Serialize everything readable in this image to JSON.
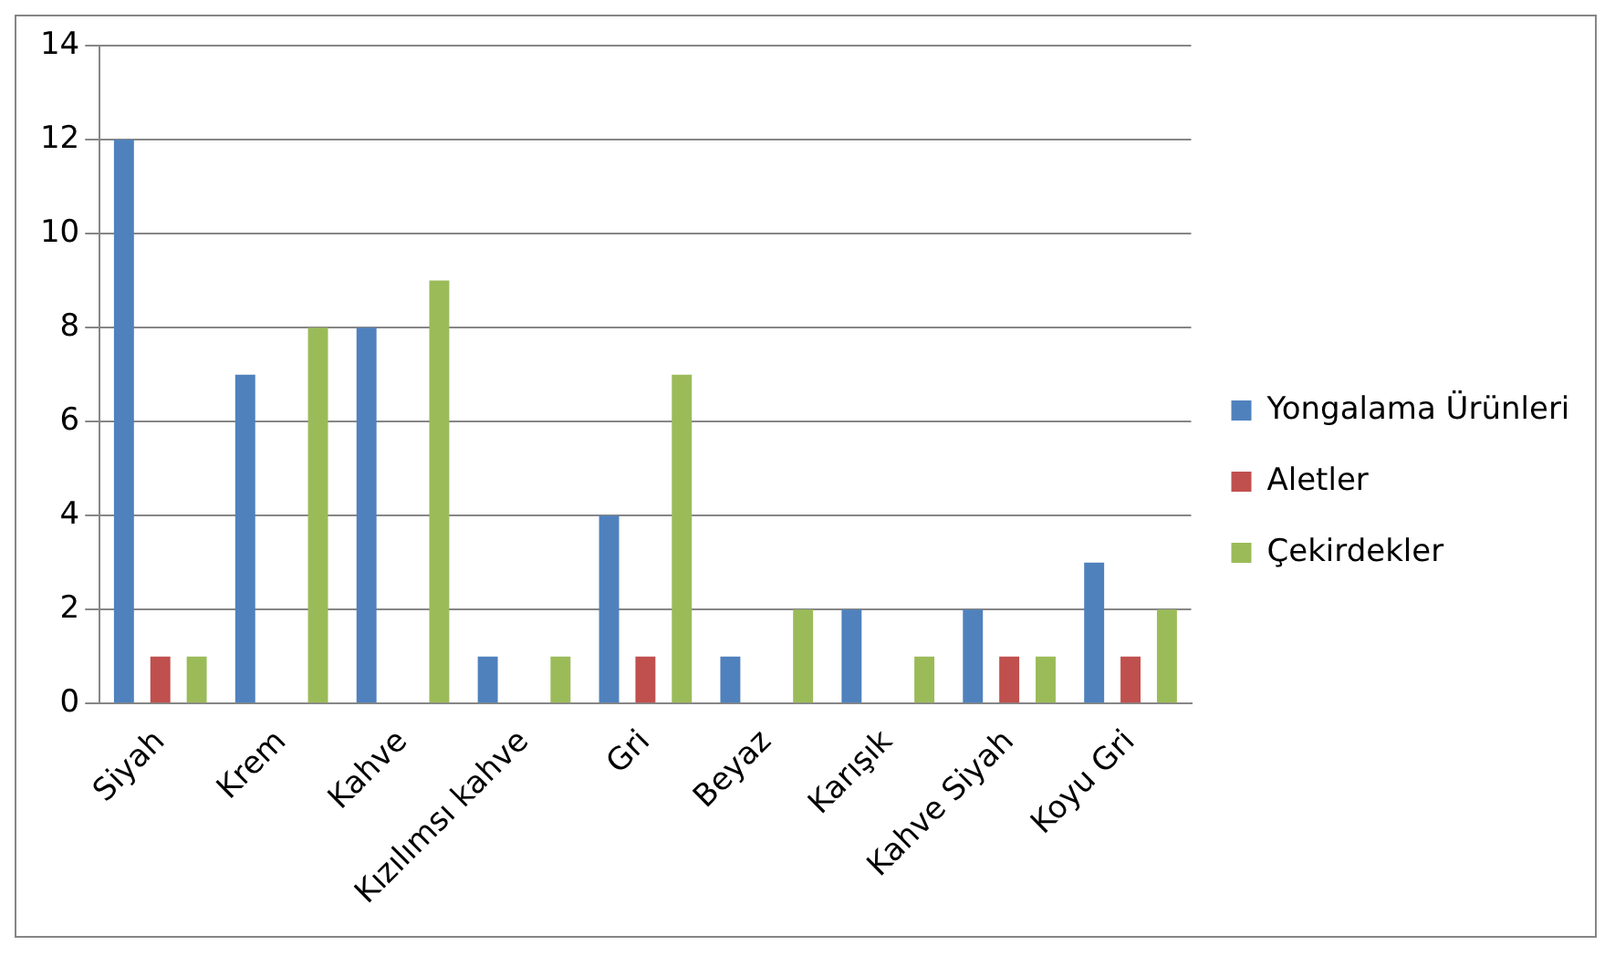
{
  "chart_data": {
    "type": "bar",
    "categories": [
      "Siyah",
      "Krem",
      "Kahve",
      "Kızılımsı kahve",
      "Gri",
      "Beyaz",
      "Karışık",
      "Kahve Siyah",
      "Koyu Gri"
    ],
    "series": [
      {
        "name": "Yongalama Ürünleri",
        "color": "#4f81bd",
        "values": [
          12,
          7,
          8,
          1,
          4,
          1,
          2,
          2,
          3
        ]
      },
      {
        "name": "Aletler",
        "color": "#c0504d",
        "values": [
          1,
          0,
          0,
          0,
          1,
          0,
          0,
          1,
          1
        ]
      },
      {
        "name": "Çekirdekler",
        "color": "#9bbb59",
        "values": [
          1,
          8,
          9,
          1,
          7,
          2,
          1,
          1,
          2
        ]
      }
    ],
    "ylim": [
      0,
      14
    ],
    "yticks": [
      0,
      2,
      4,
      6,
      8,
      10,
      12,
      14
    ],
    "grid": "y",
    "legend": "right"
  }
}
